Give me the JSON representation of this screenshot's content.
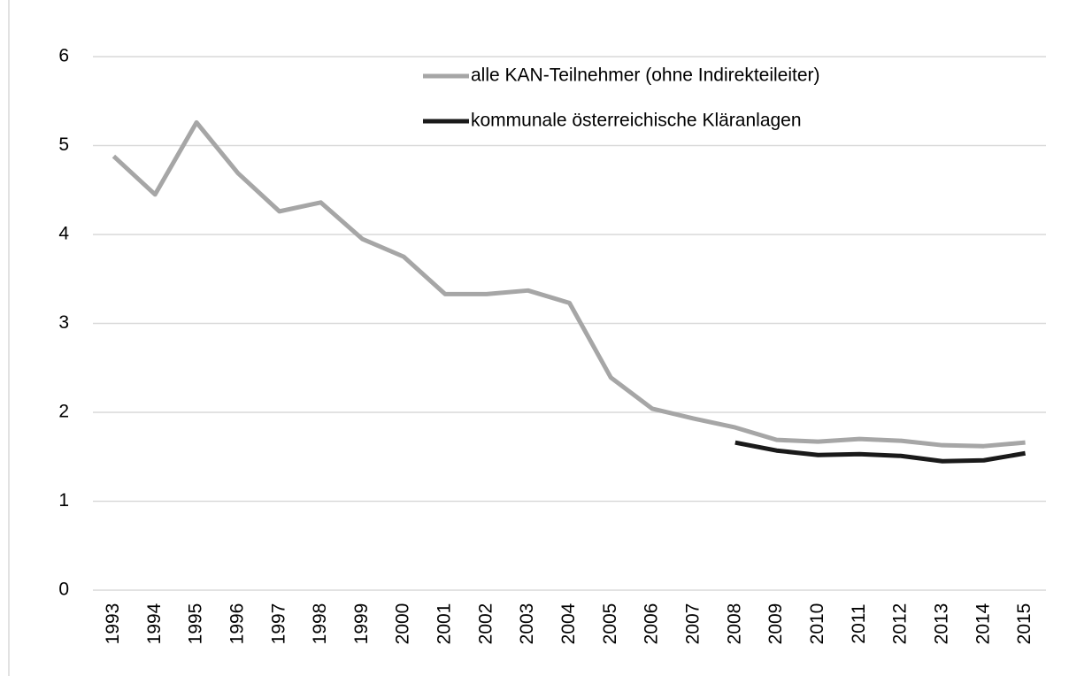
{
  "chart_data": {
    "type": "line",
    "categories": [
      "1993",
      "1994",
      "1995",
      "1996",
      "1997",
      "1998",
      "1999",
      "2000",
      "2001",
      "2002",
      "2003",
      "2004",
      "2005",
      "2006",
      "2007",
      "2008",
      "2009",
      "2010",
      "2011",
      "2012",
      "2013",
      "2014",
      "2015"
    ],
    "series": [
      {
        "name": "alle KAN-Teilnehmer (ohne Indirekteileiter)",
        "color": "#a6a6a6",
        "values": [
          4.88,
          4.45,
          5.26,
          4.69,
          4.26,
          4.36,
          3.95,
          3.75,
          3.33,
          3.33,
          3.37,
          3.23,
          2.39,
          2.04,
          1.93,
          1.83,
          1.69,
          1.67,
          1.7,
          1.68,
          1.63,
          1.62,
          1.66
        ]
      },
      {
        "name": "kommunale österreichische Kläranlagen",
        "color": "#1a1a1a",
        "values": [
          null,
          null,
          null,
          null,
          null,
          null,
          null,
          null,
          null,
          null,
          null,
          null,
          null,
          null,
          null,
          1.66,
          1.57,
          1.52,
          1.53,
          1.51,
          1.45,
          1.46,
          1.54
        ]
      }
    ],
    "ylim": [
      0,
      6
    ],
    "yticks": [
      0,
      1,
      2,
      3,
      4,
      5,
      6
    ],
    "grid": true,
    "legend": "top"
  }
}
